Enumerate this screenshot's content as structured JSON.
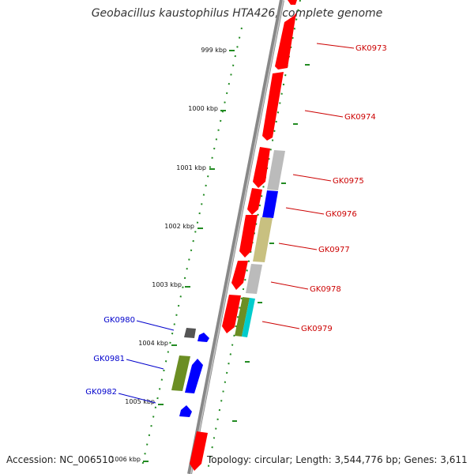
{
  "title": "Geobacillus kaustophilus HTA426, complete genome",
  "footer": {
    "accession": "Accession: NC_006510",
    "topology": "Topology: circular; Length: 3,544,776 bp; Genes: 3,611"
  },
  "ruler": {
    "ticks": [
      "999 kbp",
      "1000 kbp",
      "1001 kbp",
      "1002 kbp",
      "1003 kbp",
      "1004 kbp",
      "1005 kbp",
      "1006 kbp"
    ]
  },
  "genes": [
    {
      "name": "GK0973",
      "strand": "+",
      "color": "#cc0000"
    },
    {
      "name": "GK0974",
      "strand": "+",
      "color": "#cc0000"
    },
    {
      "name": "GK0975",
      "strand": "+",
      "color": "#cc0000"
    },
    {
      "name": "GK0976",
      "strand": "+",
      "color": "#cc0000"
    },
    {
      "name": "GK0977",
      "strand": "+",
      "color": "#cc0000"
    },
    {
      "name": "GK0978",
      "strand": "+",
      "color": "#cc0000"
    },
    {
      "name": "GK0979",
      "strand": "+",
      "color": "#cc0000"
    },
    {
      "name": "GK0980",
      "strand": "-",
      "color": "#0000cc"
    },
    {
      "name": "GK0981",
      "strand": "-",
      "color": "#0000cc"
    },
    {
      "name": "GK0982",
      "strand": "-",
      "color": "#0000cc"
    }
  ],
  "colors": {
    "forward_gene": "#ff0000",
    "reverse_gene": "#0000ff",
    "backbone": "#777777",
    "ruler": "#228b22",
    "cog_gray": "#bbbbbb",
    "cog_blue": "#0000ff",
    "cog_khaki": "#c8c080",
    "cog_olive": "#6b8e23",
    "cog_cyan": "#00cccc",
    "cog_dark_gray": "#555555"
  }
}
